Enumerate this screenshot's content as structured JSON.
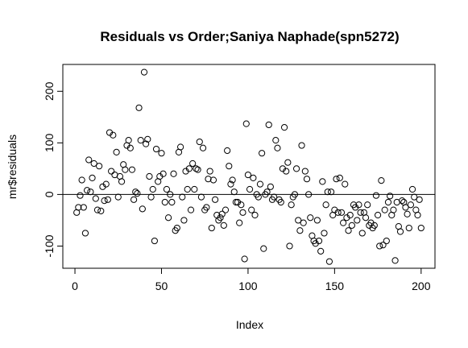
{
  "chart_data": {
    "type": "scatter",
    "title": "Residuals vs Order;Saniya Naphade(spn5272)",
    "x_label": "Index",
    "y_label": "mr$residuals",
    "values": [
      -35,
      -25,
      -2,
      28,
      -25,
      -75,
      8,
      67,
      5,
      32,
      60,
      -8,
      -30,
      55,
      -32,
      15,
      -12,
      20,
      -10,
      120,
      45,
      115,
      38,
      82,
      -5,
      35,
      25,
      58,
      48,
      95,
      105,
      90,
      48,
      -10,
      5,
      2,
      168,
      105,
      -28,
      237,
      98,
      107,
      35,
      -5,
      10,
      -90,
      88,
      25,
      35,
      80,
      40,
      -15,
      10,
      -45,
      0,
      -15,
      40,
      -70,
      -65,
      82,
      92,
      -5,
      -50,
      45,
      10,
      50,
      -30,
      60,
      10,
      50,
      48,
      102,
      -5,
      90,
      -30,
      -25,
      30,
      45,
      -65,
      28,
      -10,
      -40,
      -50,
      -45,
      -38,
      -60,
      -30,
      85,
      55,
      20,
      28,
      5,
      -15,
      -15,
      -55,
      -20,
      -35,
      -125,
      137,
      38,
      10,
      -30,
      32,
      -40,
      0,
      -5,
      20,
      80,
      -105,
      0,
      5,
      135,
      15,
      -10,
      -5,
      105,
      90,
      -10,
      -15,
      50,
      130,
      45,
      62,
      -100,
      -20,
      -5,
      0,
      50,
      -50,
      -70,
      95,
      -55,
      45,
      30,
      0,
      -45,
      -80,
      -90,
      -95,
      -50,
      -90,
      -110,
      25,
      -75,
      -20,
      5,
      -130,
      5,
      -40,
      -30,
      30,
      -35,
      32,
      -35,
      -55,
      20,
      -45,
      -70,
      -40,
      -60,
      -20,
      -25,
      -50,
      -20,
      -35,
      -75,
      -35,
      -45,
      -20,
      -60,
      -55,
      -65,
      -60,
      -2,
      -40,
      -100,
      27,
      -98,
      -30,
      -90,
      -15,
      -3,
      -40,
      -30,
      -128,
      -15,
      -62,
      -72,
      -12,
      -15,
      -25,
      -38,
      -65,
      -20,
      10,
      -5,
      -30,
      -40,
      -10,
      -65
    ],
    "xlim": [
      -7,
      208
    ],
    "ylim": [
      -143,
      252
    ],
    "xticks": [
      0,
      50,
      100,
      150,
      200
    ],
    "yticks": [
      -100,
      0,
      100,
      200
    ],
    "hline": 0,
    "color": "#000000"
  }
}
